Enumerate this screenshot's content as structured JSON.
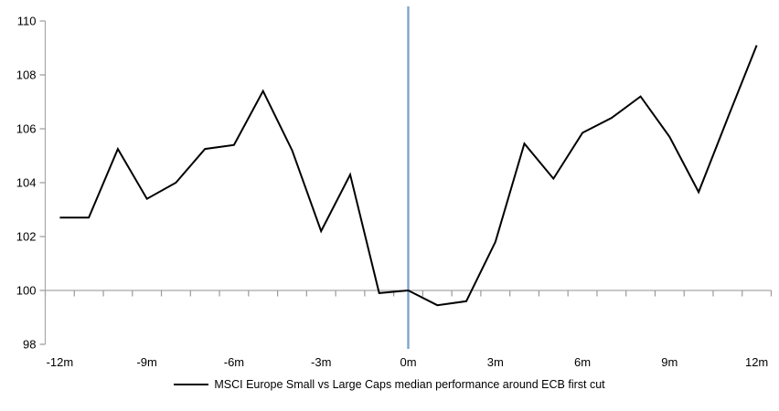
{
  "chart_data": {
    "type": "line",
    "title": "",
    "x": [
      -12,
      -11,
      -10,
      -9,
      -8,
      -7,
      -6,
      -5,
      -4,
      -3,
      -2,
      -1,
      0,
      1,
      2,
      3,
      4,
      5,
      6,
      7,
      8,
      9,
      10,
      11,
      12
    ],
    "x_tick_labels": [
      "-12m",
      "-9m",
      "-6m",
      "-3m",
      "0m",
      "3m",
      "6m",
      "9m",
      "12m"
    ],
    "x_tick_every": 3,
    "y_ticks": [
      110,
      108,
      106,
      104,
      102,
      100,
      98
    ],
    "ylim": [
      98,
      110
    ],
    "baseline_value": 100,
    "event_line_x": 0,
    "series": [
      {
        "name": "MSCI Europe Small vs Large Caps median performance around ECB first cut",
        "values": [
          102.7,
          102.7,
          105.25,
          103.4,
          104.0,
          105.25,
          105.4,
          107.4,
          105.2,
          102.2,
          104.3,
          99.9,
          100.0,
          99.45,
          99.6,
          101.8,
          105.45,
          104.15,
          105.85,
          106.4,
          107.2,
          105.7,
          103.65,
          106.4,
          109.1
        ]
      }
    ],
    "colors": {
      "series_line": "#000000",
      "event_line": "#7da6cd",
      "axis": "#a8a8a8",
      "tick": "#999999",
      "text": "#000000"
    },
    "legend_position": "bottom",
    "grid": "off"
  }
}
